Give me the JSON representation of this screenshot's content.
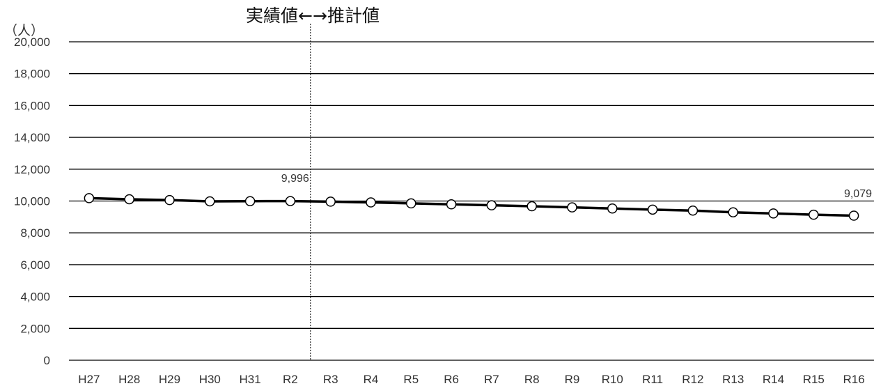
{
  "chart_data": {
    "type": "line",
    "ylabel": "（人）",
    "ylim": [
      0,
      20000
    ],
    "yticks": [
      "0",
      "2,000",
      "4,000",
      "6,000",
      "8,000",
      "10,000",
      "12,000",
      "14,000",
      "16,000",
      "18,000",
      "20,000"
    ],
    "ytick_values": [
      0,
      2000,
      4000,
      6000,
      8000,
      10000,
      12000,
      14000,
      16000,
      18000,
      20000
    ],
    "categories": [
      "H27",
      "H28",
      "H29",
      "H30",
      "H31",
      "R2",
      "R3",
      "R4",
      "R5",
      "R6",
      "R7",
      "R8",
      "R9",
      "R10",
      "R11",
      "R12",
      "R13",
      "R14",
      "R15",
      "R16"
    ],
    "series": [
      {
        "values": [
          10180,
          10110,
          10060,
          9980,
          9990,
          9996,
          9960,
          9910,
          9850,
          9790,
          9730,
          9670,
          9600,
          9530,
          9460,
          9400,
          9290,
          9220,
          9140,
          9079
        ]
      }
    ],
    "divider": {
      "after_category": "R2",
      "label": "実績値←→推計値"
    },
    "annotations": [
      {
        "category": "R2",
        "text": "9,996"
      },
      {
        "category": "R16",
        "text": "9,079"
      }
    ],
    "grid": true,
    "colors": {
      "line": "#000000",
      "marker_fill": "#ffffff",
      "grid": "#000000",
      "divider": "#000000"
    }
  }
}
